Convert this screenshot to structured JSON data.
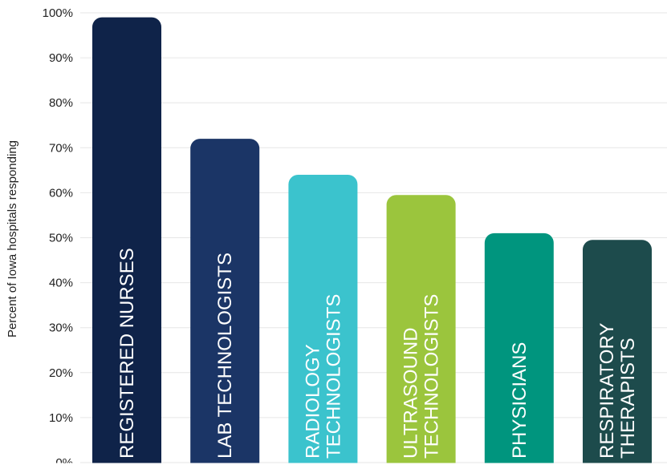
{
  "chart_data": {
    "type": "bar",
    "categories": [
      "REGISTERED NURSES",
      "LAB TECHNOLOGISTS",
      "RADIOLOGY TECHNOLOGISTS",
      "ULTRASOUND TECHNOLOGISTS",
      "PHYSICIANS",
      "RESPIRATORY THERAPISTS"
    ],
    "category_lines": [
      [
        "REGISTERED NURSES"
      ],
      [
        "LAB TECHNOLOGISTS"
      ],
      [
        "RADIOLOGY",
        "TECHNOLOGISTS"
      ],
      [
        "ULTRASOUND",
        "TECHNOLOGISTS"
      ],
      [
        "PHYSICIANS"
      ],
      [
        "RESPIRATORY",
        "THERAPISTS"
      ]
    ],
    "values": [
      99,
      72,
      64,
      59.5,
      51,
      49.5
    ],
    "colors": [
      "#0f2349",
      "#1b3566",
      "#3bc3cd",
      "#9bc53d",
      "#00957e",
      "#1d4b4c"
    ],
    "ylabel": "Percent of Iowa hospitals responding",
    "ylim": [
      0,
      100
    ],
    "yticks": [
      "0%",
      "10%",
      "20%",
      "30%",
      "40%",
      "50%",
      "60%",
      "70%",
      "80%",
      "90%",
      "100%"
    ],
    "grid": true
  }
}
